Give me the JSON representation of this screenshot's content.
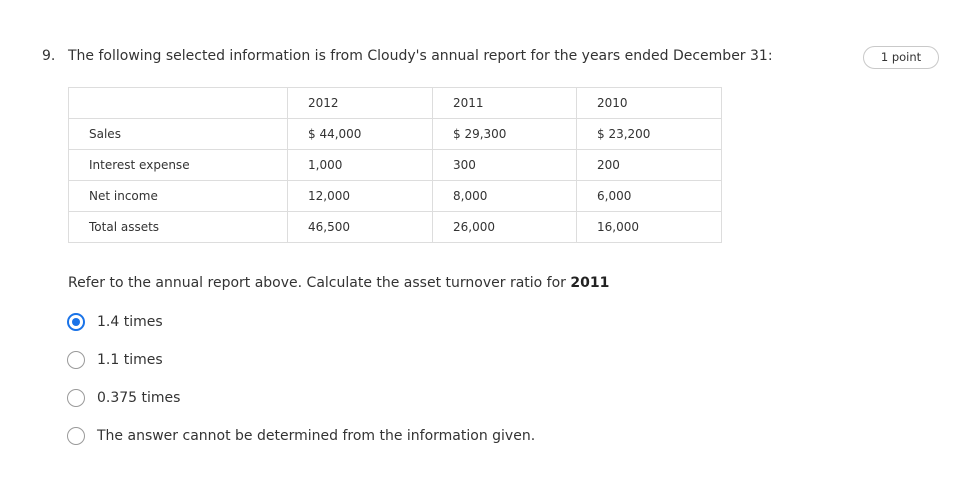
{
  "question": {
    "number": "9.",
    "text": "The following selected information is from Cloudy's annual report for the years ended December 31:",
    "points": "1 point",
    "instruction_prefix": "Refer to the annual report above. Calculate the asset turnover ratio for ",
    "instruction_year": "2011"
  },
  "table": {
    "headers": [
      "",
      "2012",
      "2011",
      "2010"
    ],
    "rows": [
      [
        "Sales",
        "$ 44,000",
        "$ 29,300",
        "$ 23,200"
      ],
      [
        "Interest expense",
        "1,000",
        "300",
        "200"
      ],
      [
        "Net income",
        "12,000",
        "8,000",
        "6,000"
      ],
      [
        "Total assets",
        "46,500",
        "26,000",
        "16,000"
      ]
    ]
  },
  "options": [
    {
      "label": "1.4 times",
      "selected": true
    },
    {
      "label": "1.1 times",
      "selected": false
    },
    {
      "label": "0.375 times",
      "selected": false
    },
    {
      "label": "The answer cannot be determined from the information given.",
      "selected": false
    }
  ],
  "colors": {
    "accent": "#1a73e8",
    "border": "#dddddd",
    "text": "#333333"
  }
}
